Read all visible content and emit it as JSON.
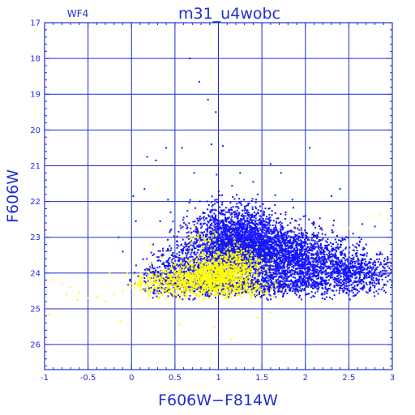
{
  "chart_data": {
    "type": "scatter",
    "title": "m31_u4wobc",
    "subtitle": "WF4",
    "xlabel": "F606W−F814W",
    "ylabel": "F606W",
    "xlim": [
      -1,
      3
    ],
    "ylim": [
      26.7,
      17
    ],
    "y_inverted": true,
    "grid": true,
    "xticks": [
      "-1",
      "-0.5",
      "0",
      "0.5",
      "1",
      "1.5",
      "2",
      "2.5",
      "3"
    ],
    "yticks": [
      "17",
      "18",
      "19",
      "20",
      "21",
      "22",
      "23",
      "24",
      "25",
      "26"
    ],
    "colors": {
      "frame": "#1f2fd1",
      "blue_points": "#1414ff",
      "yellow_points": "#ffff00"
    },
    "series": [
      {
        "color": "blue",
        "points": [
          [
            0.67,
            18.0
          ],
          [
            0.78,
            18.65
          ],
          [
            0.97,
            19.5
          ],
          [
            0.88,
            19.15
          ],
          [
            0.4,
            20.5
          ],
          [
            0.58,
            20.5
          ],
          [
            0.92,
            20.4
          ],
          [
            1.05,
            20.45
          ],
          [
            1.6,
            20.95
          ],
          [
            2.05,
            20.5
          ],
          [
            0.18,
            20.75
          ],
          [
            0.28,
            20.85
          ],
          [
            0.02,
            21.85
          ],
          [
            0.15,
            21.65
          ],
          [
            0.42,
            21.95
          ],
          [
            0.98,
            21.25
          ],
          [
            1.25,
            21.2
          ],
          [
            1.4,
            21.45
          ],
          [
            1.72,
            21.2
          ],
          [
            1.85,
            21.95
          ],
          [
            0.72,
            21.2
          ],
          [
            1.65,
            22.1
          ],
          [
            2.3,
            21.85
          ],
          [
            2.4,
            21.65
          ],
          [
            0.05,
            22.55
          ],
          [
            0.33,
            22.55
          ],
          [
            -0.15,
            23.0
          ],
          [
            0.45,
            22.3
          ],
          [
            1.45,
            21.8
          ],
          [
            2.55,
            22.9
          ],
          [
            2.8,
            22.7
          ],
          [
            -0.1,
            23.4
          ],
          [
            2.95,
            23.6
          ],
          [
            0.25,
            23.2
          ],
          [
            0.3,
            23.85
          ],
          [
            2.85,
            24.3
          ],
          [
            0.6,
            22.45
          ],
          [
            2.0,
            22.4
          ],
          [
            2.7,
            23.2
          ]
        ],
        "clusters": [
          {
            "cx": 1.3,
            "cy": 23.25,
            "sx": 0.25,
            "sy": 0.42,
            "n": 1500
          },
          {
            "cx": 1.75,
            "cy": 23.45,
            "sx": 0.32,
            "sy": 0.38,
            "n": 1300
          },
          {
            "cx": 2.25,
            "cy": 23.85,
            "sx": 0.32,
            "sy": 0.32,
            "n": 800
          },
          {
            "cx": 2.72,
            "cy": 24.05,
            "sx": 0.2,
            "sy": 0.25,
            "n": 260
          },
          {
            "cx": 1.0,
            "cy": 23.35,
            "sx": 0.22,
            "sy": 0.45,
            "n": 700
          },
          {
            "cx": 1.2,
            "cy": 22.55,
            "sx": 0.25,
            "sy": 0.3,
            "n": 380
          },
          {
            "cx": 0.65,
            "cy": 23.9,
            "sx": 0.2,
            "sy": 0.35,
            "n": 380
          },
          {
            "cx": 1.5,
            "cy": 24.35,
            "sx": 0.55,
            "sy": 0.14,
            "n": 800
          },
          {
            "cx": 0.35,
            "cy": 24.05,
            "sx": 0.12,
            "sy": 0.3,
            "n": 120
          }
        ]
      },
      {
        "color": "yellow",
        "points": [
          [
            -0.9,
            24.2
          ],
          [
            -0.8,
            24.3
          ],
          [
            -0.7,
            24.4
          ],
          [
            -0.6,
            24.55
          ],
          [
            -0.75,
            24.6
          ],
          [
            -0.5,
            24.7
          ],
          [
            -0.4,
            24.65
          ],
          [
            -0.3,
            24.8
          ],
          [
            -0.95,
            25.15
          ],
          [
            -0.12,
            25.35
          ],
          [
            -0.2,
            24.6
          ],
          [
            -0.1,
            24.5
          ],
          [
            0.05,
            24.3
          ],
          [
            0.12,
            24.25
          ],
          [
            -0.05,
            24.0
          ],
          [
            0.2,
            23.75
          ],
          [
            0.28,
            23.55
          ],
          [
            0.22,
            23.2
          ],
          [
            -0.25,
            24.0
          ],
          [
            -0.62,
            24.75
          ],
          [
            0.55,
            25.45
          ],
          [
            0.95,
            25.5
          ],
          [
            1.15,
            25.85
          ],
          [
            1.45,
            25.25
          ],
          [
            1.6,
            25.1
          ],
          [
            2.3,
            24.35
          ],
          [
            2.5,
            22.75
          ],
          [
            2.95,
            22.5
          ],
          [
            2.85,
            22.4
          ]
        ],
        "clusters": [
          {
            "cx": 0.95,
            "cy": 24.1,
            "sx": 0.22,
            "sy": 0.25,
            "n": 900
          },
          {
            "cx": 1.15,
            "cy": 23.75,
            "sx": 0.17,
            "sy": 0.28,
            "n": 350
          },
          {
            "cx": 0.55,
            "cy": 24.25,
            "sx": 0.18,
            "sy": 0.2,
            "n": 280
          },
          {
            "cx": 0.8,
            "cy": 23.05,
            "sx": 0.12,
            "sy": 0.15,
            "n": 40
          },
          {
            "cx": 0.22,
            "cy": 24.3,
            "sx": 0.12,
            "sy": 0.18,
            "n": 70
          },
          {
            "cx": 1.35,
            "cy": 24.45,
            "sx": 0.25,
            "sy": 0.12,
            "n": 130
          }
        ]
      }
    ]
  }
}
